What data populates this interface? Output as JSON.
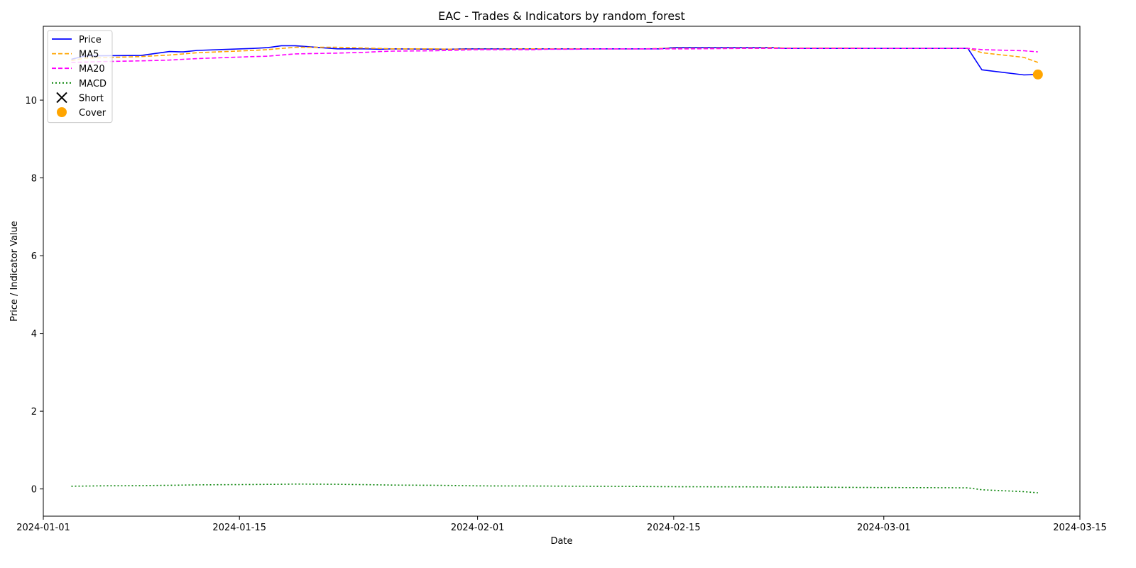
{
  "chart_data": {
    "type": "line",
    "title": "EAC - Trades & Indicators by random_forest",
    "xlabel": "Date",
    "ylabel": "Price / Indicator Value",
    "xlim": [
      "2024-01-01",
      "2024-03-15"
    ],
    "ylim": [
      -0.7,
      11.9
    ],
    "x_ticks": [
      "2024-01-01",
      "2024-01-15",
      "2024-02-01",
      "2024-02-15",
      "2024-03-01",
      "2024-03-15"
    ],
    "y_ticks": [
      0,
      2,
      4,
      6,
      8,
      10
    ],
    "grid": false,
    "legend_position": "top-left",
    "dates": [
      "2024-01-03",
      "2024-01-04",
      "2024-01-05",
      "2024-01-08",
      "2024-01-09",
      "2024-01-10",
      "2024-01-11",
      "2024-01-12",
      "2024-01-16",
      "2024-01-17",
      "2024-01-18",
      "2024-01-19",
      "2024-01-22",
      "2024-01-23",
      "2024-01-24",
      "2024-01-25",
      "2024-01-26",
      "2024-01-29",
      "2024-01-30",
      "2024-01-31",
      "2024-02-01",
      "2024-02-02",
      "2024-02-05",
      "2024-02-06",
      "2024-02-07",
      "2024-02-08",
      "2024-02-09",
      "2024-02-12",
      "2024-02-13",
      "2024-02-14",
      "2024-02-15",
      "2024-02-16",
      "2024-02-20",
      "2024-02-21",
      "2024-02-22",
      "2024-02-23",
      "2024-02-26",
      "2024-02-27",
      "2024-02-28",
      "2024-02-29",
      "2024-03-01",
      "2024-03-04",
      "2024-03-05",
      "2024-03-06",
      "2024-03-07",
      "2024-03-08",
      "2024-03-11",
      "2024-03-12"
    ],
    "series": [
      {
        "name": "Price",
        "color": "#0000ff",
        "dash": "solid",
        "values": [
          11.05,
          11.14,
          11.14,
          11.15,
          11.2,
          11.25,
          11.24,
          11.28,
          11.33,
          11.35,
          11.4,
          11.4,
          11.32,
          11.32,
          11.32,
          11.31,
          11.32,
          11.31,
          11.31,
          11.32,
          11.32,
          11.32,
          11.32,
          11.32,
          11.32,
          11.32,
          11.32,
          11.32,
          11.32,
          11.32,
          11.35,
          11.35,
          11.35,
          11.35,
          11.35,
          11.33,
          11.33,
          11.33,
          11.33,
          11.33,
          11.33,
          11.33,
          11.33,
          11.33,
          11.33,
          10.78,
          10.65,
          10.66
        ]
      },
      {
        "name": "MA5",
        "color": "#ffa500",
        "dash": "dashed",
        "values": [
          11.02,
          11.08,
          11.09,
          11.12,
          11.14,
          11.16,
          11.19,
          11.22,
          11.28,
          11.3,
          11.33,
          11.36,
          11.36,
          11.35,
          11.34,
          11.33,
          11.32,
          11.32,
          11.31,
          11.31,
          11.31,
          11.31,
          11.32,
          11.32,
          11.32,
          11.32,
          11.32,
          11.32,
          11.32,
          11.33,
          11.33,
          11.33,
          11.34,
          11.34,
          11.35,
          11.34,
          11.34,
          11.34,
          11.34,
          11.33,
          11.33,
          11.33,
          11.33,
          11.33,
          11.33,
          11.22,
          11.1,
          10.97
        ]
      },
      {
        "name": "MA20",
        "color": "#ff00ff",
        "dash": "dashed",
        "values": [
          10.97,
          10.98,
          10.99,
          11.01,
          11.02,
          11.03,
          11.05,
          11.07,
          11.12,
          11.13,
          11.16,
          11.19,
          11.21,
          11.22,
          11.23,
          11.25,
          11.26,
          11.27,
          11.28,
          11.29,
          11.3,
          11.3,
          11.3,
          11.31,
          11.31,
          11.31,
          11.32,
          11.32,
          11.32,
          11.32,
          11.32,
          11.32,
          11.33,
          11.33,
          11.33,
          11.33,
          11.33,
          11.33,
          11.33,
          11.33,
          11.33,
          11.33,
          11.33,
          11.33,
          11.33,
          11.3,
          11.27,
          11.24
        ]
      },
      {
        "name": "MACD",
        "color": "#008000",
        "dash": "dotted",
        "values": [
          0.07,
          0.075,
          0.08,
          0.085,
          0.09,
          0.095,
          0.1,
          0.105,
          0.115,
          0.118,
          0.12,
          0.125,
          0.12,
          0.115,
          0.11,
          0.105,
          0.1,
          0.095,
          0.09,
          0.085,
          0.08,
          0.078,
          0.076,
          0.074,
          0.072,
          0.07,
          0.068,
          0.065,
          0.062,
          0.06,
          0.058,
          0.056,
          0.054,
          0.052,
          0.05,
          0.048,
          0.045,
          0.042,
          0.04,
          0.038,
          0.036,
          0.034,
          0.032,
          0.03,
          0.028,
          -0.02,
          -0.07,
          -0.1
        ]
      }
    ],
    "markers": [
      {
        "name": "Short",
        "marker": "x",
        "color": "#000000",
        "points": []
      },
      {
        "name": "Cover",
        "marker": "o",
        "color": "#ffa500",
        "points": [
          {
            "x": "2024-03-12",
            "y": 10.66
          }
        ]
      }
    ]
  }
}
